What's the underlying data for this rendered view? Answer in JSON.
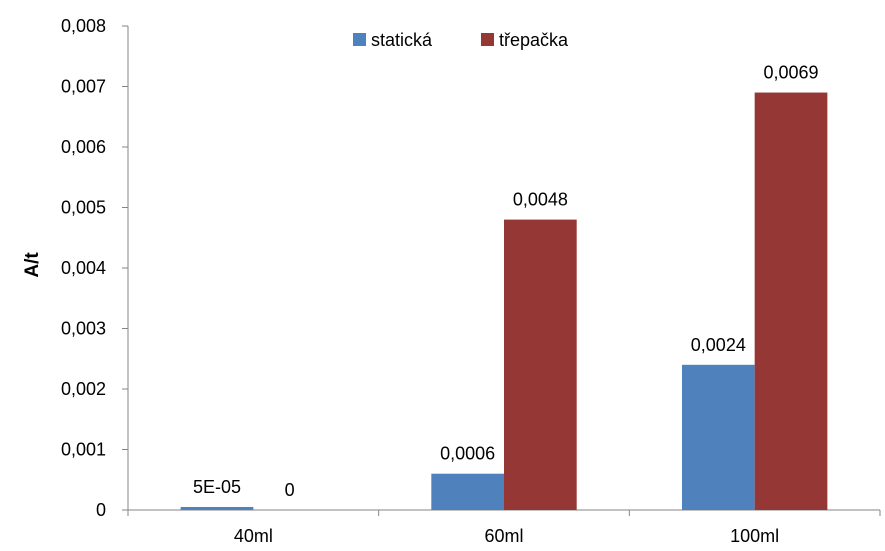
{
  "chart_data": {
    "type": "bar",
    "title": "",
    "xlabel": "",
    "ylabel": "A/t",
    "ylim": [
      0,
      0.008
    ],
    "yticks": [
      "0",
      "0,001",
      "0,002",
      "0,003",
      "0,004",
      "0,005",
      "0,006",
      "0,007",
      "0,008"
    ],
    "categories": [
      "40ml",
      "60ml",
      "100ml"
    ],
    "series": [
      {
        "name": "statická",
        "color": "#4f81bd",
        "values": [
          5e-05,
          0.0006,
          0.0024
        ],
        "labels": [
          "5E-05",
          "0,0006",
          "0,0024"
        ]
      },
      {
        "name": "třepačka",
        "color": "#953735",
        "values": [
          0,
          0.0048,
          0.0069
        ],
        "labels": [
          "0",
          "0,0048",
          "0,0069"
        ]
      }
    ],
    "grid": false,
    "legend": "top"
  }
}
